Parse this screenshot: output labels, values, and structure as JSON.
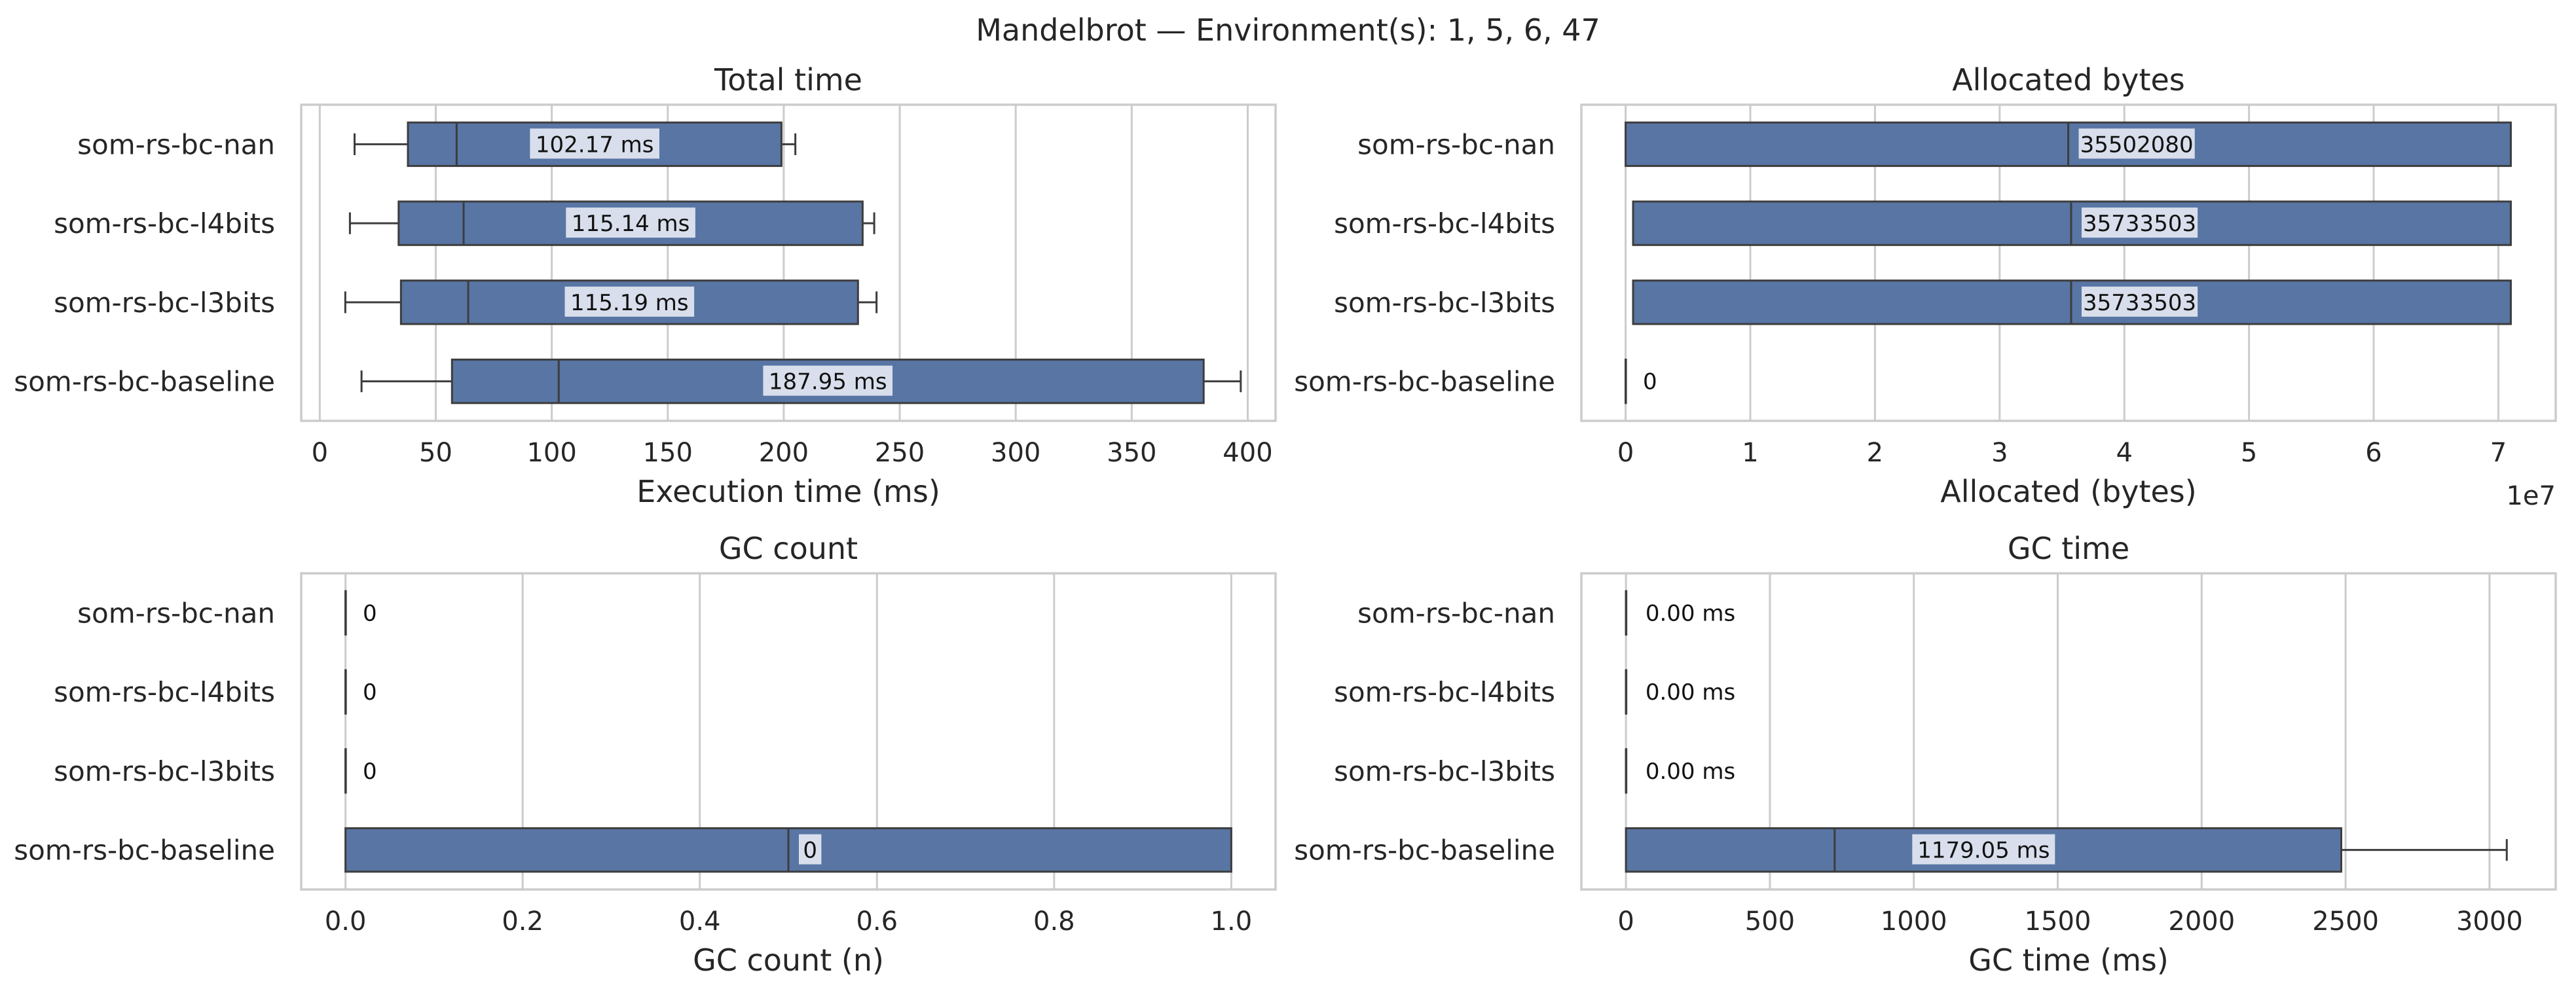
{
  "figure": {
    "suptitle": "Mandelbrot — Environment(s): 1, 5, 6, 47"
  },
  "colors": {
    "box_fill": "#5875a4",
    "box_edge": "#3d3d3d",
    "grid": "#cccccc",
    "spine": "#cccccc",
    "label_bg": "#dfe4f0"
  },
  "chart_data": [
    {
      "type": "box",
      "title": "Total time",
      "xlabel": "Execution time (ms)",
      "ylabel": "",
      "xlim": [
        -8,
        412
      ],
      "ticks": [
        0,
        50,
        100,
        150,
        200,
        250,
        300,
        350,
        400
      ],
      "tick_labels": [
        "0",
        "50",
        "100",
        "150",
        "200",
        "250",
        "300",
        "350",
        "400"
      ],
      "offset_text": "",
      "grid": true,
      "categories": [
        "som-rs-bc-nan",
        "som-rs-bc-l4bits",
        "som-rs-bc-l3bits",
        "som-rs-bc-baseline"
      ],
      "boxes": [
        {
          "whislo": 15,
          "q1": 38,
          "med": 59,
          "q3": 199,
          "whishi": 205,
          "annotation": "102.17 ms"
        },
        {
          "whislo": 13,
          "q1": 34,
          "med": 62,
          "q3": 234,
          "whishi": 239,
          "annotation": "115.14 ms"
        },
        {
          "whislo": 11,
          "q1": 35,
          "med": 64,
          "q3": 232,
          "whishi": 240,
          "annotation": "115.19 ms"
        },
        {
          "whislo": 18,
          "q1": 57,
          "med": 103,
          "q3": 381,
          "whishi": 397,
          "annotation": "187.95 ms"
        }
      ]
    },
    {
      "type": "box",
      "title": "Allocated bytes",
      "xlabel": "Allocated (bytes)",
      "ylabel": "",
      "xlim": [
        -3550000,
        74600000
      ],
      "ticks": [
        0,
        10000000,
        20000000,
        30000000,
        40000000,
        50000000,
        60000000,
        70000000
      ],
      "tick_labels": [
        "0",
        "1",
        "2",
        "3",
        "4",
        "5",
        "6",
        "7"
      ],
      "offset_text": "1e7",
      "grid": true,
      "categories": [
        "som-rs-bc-nan",
        "som-rs-bc-l4bits",
        "som-rs-bc-l3bits",
        "som-rs-bc-baseline"
      ],
      "boxes": [
        {
          "whislo": 0,
          "q1": 0,
          "med": 35502080,
          "q3": 71000000,
          "whishi": 71000000,
          "annotation": "35502080"
        },
        {
          "whislo": 600000,
          "q1": 600000,
          "med": 35733503,
          "q3": 71000000,
          "whishi": 71000000,
          "annotation": "35733503"
        },
        {
          "whislo": 600000,
          "q1": 600000,
          "med": 35733503,
          "q3": 71000000,
          "whishi": 71000000,
          "annotation": "35733503"
        },
        {
          "whislo": 0,
          "q1": 0,
          "med": 0,
          "q3": 0,
          "whishi": 0,
          "annotation": "0"
        }
      ]
    },
    {
      "type": "box",
      "title": "GC count",
      "xlabel": "GC count (n)",
      "ylabel": "",
      "xlim": [
        -0.05,
        1.05
      ],
      "ticks": [
        0,
        0.2,
        0.4,
        0.6,
        0.8,
        1.0
      ],
      "tick_labels": [
        "0.0",
        "0.2",
        "0.4",
        "0.6",
        "0.8",
        "1.0"
      ],
      "offset_text": "",
      "grid": true,
      "categories": [
        "som-rs-bc-nan",
        "som-rs-bc-l4bits",
        "som-rs-bc-l3bits",
        "som-rs-bc-baseline"
      ],
      "boxes": [
        {
          "whislo": 0,
          "q1": 0,
          "med": 0,
          "q3": 0,
          "whishi": 0,
          "annotation": "0"
        },
        {
          "whislo": 0,
          "q1": 0,
          "med": 0,
          "q3": 0,
          "whishi": 0,
          "annotation": "0"
        },
        {
          "whislo": 0,
          "q1": 0,
          "med": 0,
          "q3": 0,
          "whishi": 0,
          "annotation": "0"
        },
        {
          "whislo": 0,
          "q1": 0,
          "med": 0.5,
          "q3": 1,
          "whishi": 1,
          "annotation": "0"
        }
      ]
    },
    {
      "type": "box",
      "title": "GC time",
      "xlabel": "GC time (ms)",
      "ylabel": "",
      "xlim": [
        -155,
        3230
      ],
      "ticks": [
        0,
        500,
        1000,
        1500,
        2000,
        2500,
        3000
      ],
      "tick_labels": [
        "0",
        "500",
        "1000",
        "1500",
        "2000",
        "2500",
        "3000"
      ],
      "offset_text": "",
      "grid": true,
      "categories": [
        "som-rs-bc-nan",
        "som-rs-bc-l4bits",
        "som-rs-bc-l3bits",
        "som-rs-bc-baseline"
      ],
      "boxes": [
        {
          "whislo": 0,
          "q1": 0,
          "med": 0,
          "q3": 0,
          "whishi": 0,
          "annotation": "0.00 ms"
        },
        {
          "whislo": 0,
          "q1": 0,
          "med": 0,
          "q3": 0,
          "whishi": 0,
          "annotation": "0.00 ms"
        },
        {
          "whislo": 0,
          "q1": 0,
          "med": 0,
          "q3": 0,
          "whishi": 0,
          "annotation": "0.00 ms"
        },
        {
          "whislo": 0,
          "q1": 0,
          "med": 725,
          "q3": 2485,
          "whishi": 3060,
          "annotation": "1179.05 ms"
        }
      ]
    }
  ]
}
